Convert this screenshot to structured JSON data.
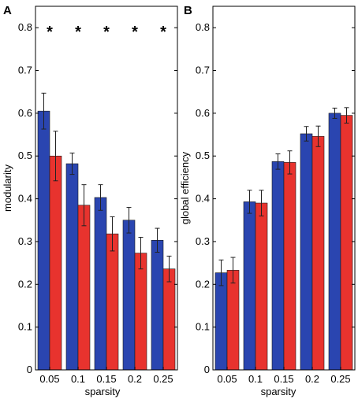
{
  "colors": {
    "series_a": "#2a45b0",
    "series_b": "#e8332e",
    "axis": "#000000",
    "error_bar": "#222222"
  },
  "chart_data": [
    {
      "panel_label": "A",
      "type": "bar",
      "categories": [
        "0.05",
        "0.1",
        "0.15",
        "0.2",
        "0.25"
      ],
      "xlabel": "sparsity",
      "ylabel": "modularity",
      "ylim": [
        0,
        0.85
      ],
      "yticks": [
        "0",
        "0.1",
        "0.2",
        "0.3",
        "0.4",
        "0.5",
        "0.6",
        "0.7",
        "0.8"
      ],
      "series": [
        {
          "values": [
            0.605,
            0.482,
            0.403,
            0.35,
            0.303
          ],
          "errors": [
            0.042,
            0.025,
            0.03,
            0.03,
            0.028
          ]
        },
        {
          "values": [
            0.5,
            0.385,
            0.318,
            0.273,
            0.236
          ],
          "errors": [
            0.058,
            0.048,
            0.04,
            0.037,
            0.03
          ]
        }
      ],
      "annotations": [
        "*",
        "*",
        "*",
        "*",
        "*"
      ],
      "annotation_y": 0.8,
      "grid": false,
      "legend": "none"
    },
    {
      "panel_label": "B",
      "type": "bar",
      "categories": [
        "0.05",
        "0.1",
        "0.15",
        "0.2",
        "0.25"
      ],
      "xlabel": "sparsity",
      "ylabel": "global efficiency",
      "ylim": [
        0,
        0.85
      ],
      "yticks": [
        "0",
        "0.1",
        "0.2",
        "0.3",
        "0.4",
        "0.5",
        "0.6",
        "0.7",
        "0.8"
      ],
      "series": [
        {
          "values": [
            0.227,
            0.393,
            0.487,
            0.552,
            0.6
          ],
          "errors": [
            0.03,
            0.027,
            0.018,
            0.017,
            0.012
          ]
        },
        {
          "values": [
            0.233,
            0.39,
            0.485,
            0.546,
            0.595
          ],
          "errors": [
            0.03,
            0.03,
            0.027,
            0.024,
            0.018
          ]
        }
      ],
      "annotations": [],
      "grid": false,
      "legend": "none"
    }
  ]
}
